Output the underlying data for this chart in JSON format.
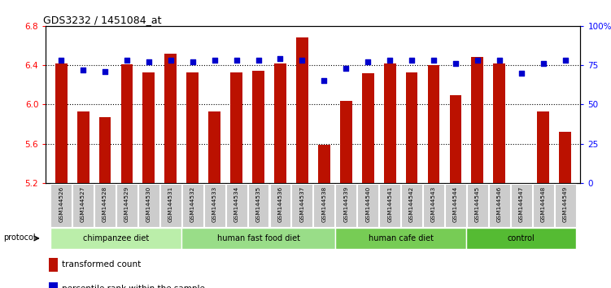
{
  "title": "GDS3232 / 1451084_at",
  "samples": [
    "GSM144526",
    "GSM144527",
    "GSM144528",
    "GSM144529",
    "GSM144530",
    "GSM144531",
    "GSM144532",
    "GSM144533",
    "GSM144534",
    "GSM144535",
    "GSM144536",
    "GSM144537",
    "GSM144538",
    "GSM144539",
    "GSM144540",
    "GSM144541",
    "GSM144542",
    "GSM144543",
    "GSM144544",
    "GSM144545",
    "GSM144546",
    "GSM144547",
    "GSM144548",
    "GSM144549"
  ],
  "bar_values": [
    6.42,
    5.93,
    5.87,
    6.41,
    6.33,
    6.52,
    6.33,
    5.93,
    6.33,
    6.34,
    6.42,
    6.68,
    5.59,
    6.04,
    6.32,
    6.42,
    6.33,
    6.4,
    6.09,
    6.48,
    6.42,
    5.19,
    5.93,
    5.72
  ],
  "percentile_values": [
    78,
    72,
    71,
    78,
    77,
    78,
    77,
    78,
    78,
    78,
    79,
    78,
    65,
    73,
    77,
    78,
    78,
    78,
    76,
    78,
    78,
    70,
    76,
    78
  ],
  "groups": [
    {
      "label": "chimpanzee diet",
      "start": 0,
      "end": 5,
      "color": "#bbeeaa"
    },
    {
      "label": "human fast food diet",
      "start": 6,
      "end": 12,
      "color": "#99dd88"
    },
    {
      "label": "human cafe diet",
      "start": 13,
      "end": 18,
      "color": "#77cc55"
    },
    {
      "label": "control",
      "start": 19,
      "end": 23,
      "color": "#55bb33"
    }
  ],
  "ylim_left": [
    5.2,
    6.8
  ],
  "ylim_right": [
    0,
    100
  ],
  "yticks_left": [
    5.2,
    5.6,
    6.0,
    6.4,
    6.8
  ],
  "yticks_right": [
    0,
    25,
    50,
    75,
    100
  ],
  "bar_color": "#bb1100",
  "dot_color": "#0000cc",
  "bg_color": "#ffffff",
  "plot_bg_color": "#ffffff",
  "tick_bg_color": "#cccccc"
}
